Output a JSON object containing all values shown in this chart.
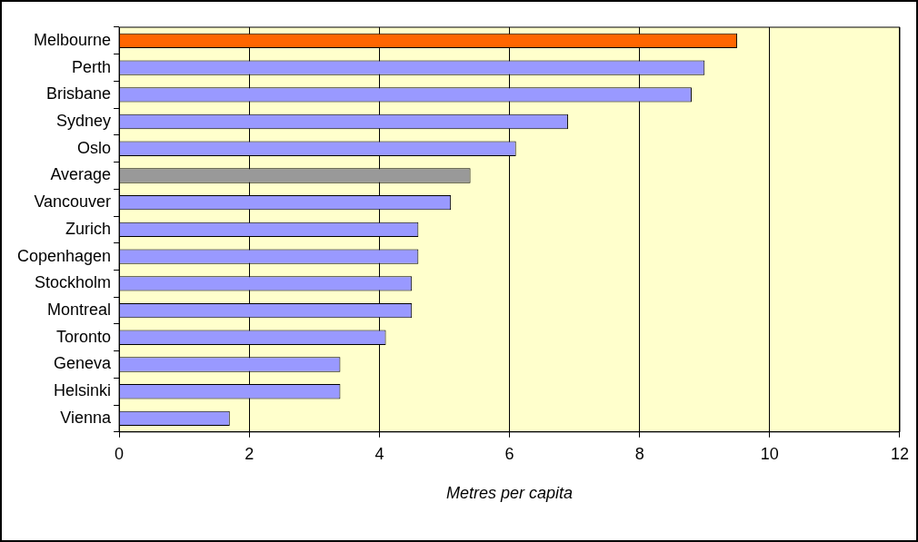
{
  "chart_data": {
    "type": "bar",
    "orientation": "horizontal",
    "xlabel": "Metres per capita",
    "categories": [
      "Melbourne",
      "Perth",
      "Brisbane",
      "Sydney",
      "Oslo",
      "Average",
      "Vancouver",
      "Zurich",
      "Copenhagen",
      "Stockholm",
      "Montreal",
      "Toronto",
      "Geneva",
      "Helsinki",
      "Vienna"
    ],
    "values": [
      9.5,
      9.0,
      8.8,
      6.9,
      6.1,
      5.4,
      5.1,
      4.6,
      4.6,
      4.5,
      4.5,
      4.1,
      3.4,
      3.4,
      1.7
    ],
    "colors": [
      "#ff6600",
      "#9999ff",
      "#9999ff",
      "#9999ff",
      "#9999ff",
      "#999999",
      "#9999ff",
      "#9999ff",
      "#9999ff",
      "#9999ff",
      "#9999ff",
      "#9999ff",
      "#9999ff",
      "#9999ff",
      "#9999ff"
    ],
    "xlim": [
      0,
      12
    ],
    "xticks": [
      0,
      2,
      4,
      6,
      8,
      10,
      12
    ],
    "grid": "x",
    "legend": false
  }
}
